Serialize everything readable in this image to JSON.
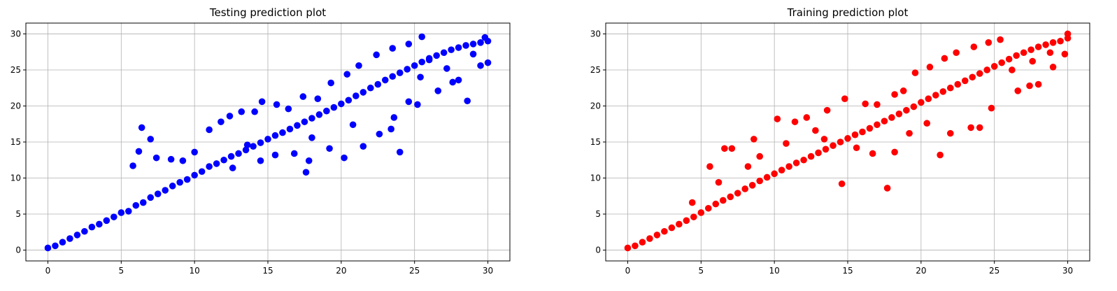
{
  "chart_data": [
    {
      "type": "scatter",
      "title": "Testing prediction plot",
      "xlabel": "",
      "ylabel": "",
      "xlim": [
        -1.5,
        31.5
      ],
      "ylim": [
        -1.5,
        31.5
      ],
      "xticks": [
        0,
        5,
        10,
        15,
        20,
        25,
        30
      ],
      "yticks": [
        0,
        5,
        10,
        15,
        20,
        25,
        30
      ],
      "grid": true,
      "color": "#0000ff",
      "series": [
        {
          "points": [
            [
              0.0,
              0.3
            ],
            [
              0.5,
              0.6
            ],
            [
              1.0,
              1.1
            ],
            [
              1.5,
              1.6
            ],
            [
              2.0,
              2.1
            ],
            [
              2.5,
              2.6
            ],
            [
              3.0,
              3.2
            ],
            [
              3.5,
              3.6
            ],
            [
              4.0,
              4.1
            ],
            [
              4.5,
              4.6
            ],
            [
              5.0,
              5.2
            ],
            [
              5.5,
              5.4
            ],
            [
              6.0,
              6.2
            ],
            [
              6.5,
              6.6
            ],
            [
              7.0,
              7.3
            ],
            [
              7.5,
              7.8
            ],
            [
              8.0,
              8.3
            ],
            [
              8.5,
              8.9
            ],
            [
              9.0,
              9.4
            ],
            [
              9.5,
              9.8
            ],
            [
              10.0,
              10.4
            ],
            [
              10.5,
              10.9
            ],
            [
              11.0,
              11.6
            ],
            [
              11.5,
              12.0
            ],
            [
              12.0,
              12.5
            ],
            [
              12.5,
              13.0
            ],
            [
              13.0,
              13.4
            ],
            [
              13.5,
              13.9
            ],
            [
              14.0,
              14.4
            ],
            [
              14.5,
              14.9
            ],
            [
              15.0,
              15.4
            ],
            [
              15.5,
              15.9
            ],
            [
              16.0,
              16.3
            ],
            [
              16.5,
              16.8
            ],
            [
              17.0,
              17.3
            ],
            [
              17.5,
              17.8
            ],
            [
              18.0,
              18.3
            ],
            [
              18.5,
              18.8
            ],
            [
              19.0,
              19.3
            ],
            [
              19.5,
              19.8
            ],
            [
              20.0,
              20.3
            ],
            [
              20.5,
              20.8
            ],
            [
              21.0,
              21.4
            ],
            [
              21.5,
              21.9
            ],
            [
              22.0,
              22.5
            ],
            [
              22.5,
              23.0
            ],
            [
              23.0,
              23.6
            ],
            [
              23.5,
              24.1
            ],
            [
              24.0,
              24.6
            ],
            [
              24.5,
              25.1
            ],
            [
              25.0,
              25.6
            ],
            [
              25.5,
              26.1
            ],
            [
              26.0,
              26.6
            ],
            [
              26.5,
              27.0
            ],
            [
              27.0,
              27.4
            ],
            [
              27.5,
              27.8
            ],
            [
              28.0,
              28.1
            ],
            [
              28.5,
              28.4
            ],
            [
              29.0,
              28.6
            ],
            [
              29.5,
              28.8
            ],
            [
              30.0,
              29.0
            ],
            [
              6.4,
              17.0
            ],
            [
              7.0,
              15.4
            ],
            [
              6.2,
              13.7
            ],
            [
              5.8,
              11.7
            ],
            [
              7.4,
              12.8
            ],
            [
              8.4,
              12.6
            ],
            [
              9.2,
              12.4
            ],
            [
              10.0,
              13.6
            ],
            [
              11.0,
              16.7
            ],
            [
              11.8,
              17.8
            ],
            [
              12.4,
              18.6
            ],
            [
              13.2,
              19.2
            ],
            [
              14.1,
              19.2
            ],
            [
              14.6,
              20.6
            ],
            [
              15.6,
              20.2
            ],
            [
              16.4,
              19.6
            ],
            [
              17.4,
              21.3
            ],
            [
              18.4,
              21.0
            ],
            [
              19.3,
              23.2
            ],
            [
              20.4,
              24.4
            ],
            [
              21.2,
              25.6
            ],
            [
              22.4,
              27.1
            ],
            [
              23.5,
              28.0
            ],
            [
              24.6,
              28.6
            ],
            [
              25.5,
              29.6
            ],
            [
              17.6,
              10.8
            ],
            [
              17.8,
              12.4
            ],
            [
              16.8,
              13.4
            ],
            [
              19.2,
              14.1
            ],
            [
              20.2,
              12.8
            ],
            [
              21.5,
              14.4
            ],
            [
              22.6,
              16.1
            ],
            [
              23.4,
              16.8
            ],
            [
              24.0,
              13.6
            ],
            [
              23.6,
              18.4
            ],
            [
              24.6,
              20.6
            ],
            [
              25.2,
              20.2
            ],
            [
              26.6,
              22.1
            ],
            [
              27.6,
              23.3
            ],
            [
              28.6,
              20.7
            ],
            [
              28.0,
              23.6
            ],
            [
              29.5,
              25.6
            ],
            [
              13.6,
              14.6
            ],
            [
              14.5,
              12.4
            ],
            [
              12.6,
              11.4
            ],
            [
              15.5,
              13.2
            ],
            [
              18.0,
              15.6
            ],
            [
              20.8,
              17.4
            ],
            [
              26.0,
              26.4
            ],
            [
              27.2,
              25.2
            ],
            [
              25.4,
              24.0
            ],
            [
              29.0,
              27.2
            ],
            [
              29.8,
              29.5
            ],
            [
              30.0,
              26.0
            ]
          ]
        }
      ]
    },
    {
      "type": "scatter",
      "title": "Training prediction plot",
      "xlabel": "",
      "ylabel": "",
      "xlim": [
        -1.5,
        31.5
      ],
      "ylim": [
        -1.5,
        31.5
      ],
      "xticks": [
        0,
        5,
        10,
        15,
        20,
        25,
        30
      ],
      "yticks": [
        0,
        5,
        10,
        15,
        20,
        25,
        30
      ],
      "grid": true,
      "color": "#ff0000",
      "series": [
        {
          "points": [
            [
              0.0,
              0.3
            ],
            [
              0.5,
              0.6
            ],
            [
              1.0,
              1.1
            ],
            [
              1.5,
              1.6
            ],
            [
              2.0,
              2.1
            ],
            [
              2.5,
              2.6
            ],
            [
              3.0,
              3.1
            ],
            [
              3.5,
              3.6
            ],
            [
              4.0,
              4.1
            ],
            [
              4.5,
              4.6
            ],
            [
              5.0,
              5.2
            ],
            [
              5.5,
              5.8
            ],
            [
              6.0,
              6.4
            ],
            [
              6.5,
              6.9
            ],
            [
              7.0,
              7.4
            ],
            [
              7.5,
              7.9
            ],
            [
              8.0,
              8.5
            ],
            [
              8.5,
              9.0
            ],
            [
              9.0,
              9.6
            ],
            [
              9.5,
              10.1
            ],
            [
              10.0,
              10.6
            ],
            [
              10.5,
              11.1
            ],
            [
              11.0,
              11.6
            ],
            [
              11.5,
              12.1
            ],
            [
              12.0,
              12.5
            ],
            [
              12.5,
              13.0
            ],
            [
              13.0,
              13.5
            ],
            [
              13.5,
              14.0
            ],
            [
              14.0,
              14.5
            ],
            [
              14.5,
              15.0
            ],
            [
              15.0,
              15.5
            ],
            [
              15.5,
              16.0
            ],
            [
              16.0,
              16.4
            ],
            [
              16.5,
              16.9
            ],
            [
              17.0,
              17.4
            ],
            [
              17.5,
              17.9
            ],
            [
              18.0,
              18.4
            ],
            [
              18.5,
              18.9
            ],
            [
              19.0,
              19.4
            ],
            [
              19.5,
              19.9
            ],
            [
              20.0,
              20.5
            ],
            [
              20.5,
              21.0
            ],
            [
              21.0,
              21.5
            ],
            [
              21.5,
              22.0
            ],
            [
              22.0,
              22.5
            ],
            [
              22.5,
              23.0
            ],
            [
              23.0,
              23.5
            ],
            [
              23.5,
              24.0
            ],
            [
              24.0,
              24.5
            ],
            [
              24.5,
              25.0
            ],
            [
              25.0,
              25.5
            ],
            [
              25.5,
              26.0
            ],
            [
              26.0,
              26.5
            ],
            [
              26.5,
              27.0
            ],
            [
              27.0,
              27.4
            ],
            [
              27.5,
              27.8
            ],
            [
              28.0,
              28.2
            ],
            [
              28.5,
              28.5
            ],
            [
              29.0,
              28.8
            ],
            [
              29.5,
              29.0
            ],
            [
              30.0,
              29.4
            ],
            [
              6.6,
              14.1
            ],
            [
              7.1,
              14.1
            ],
            [
              5.6,
              11.6
            ],
            [
              8.6,
              15.4
            ],
            [
              10.2,
              18.2
            ],
            [
              11.4,
              17.8
            ],
            [
              12.2,
              18.4
            ],
            [
              13.6,
              19.4
            ],
            [
              14.8,
              21.0
            ],
            [
              16.2,
              20.3
            ],
            [
              17.0,
              20.2
            ],
            [
              18.2,
              21.6
            ],
            [
              18.8,
              22.1
            ],
            [
              19.6,
              24.6
            ],
            [
              20.6,
              25.4
            ],
            [
              21.6,
              26.6
            ],
            [
              22.4,
              27.4
            ],
            [
              23.6,
              28.2
            ],
            [
              24.6,
              28.8
            ],
            [
              25.4,
              29.2
            ],
            [
              17.7,
              8.6
            ],
            [
              14.6,
              9.2
            ],
            [
              16.7,
              13.4
            ],
            [
              18.2,
              13.6
            ],
            [
              21.3,
              13.2
            ],
            [
              22.0,
              16.2
            ],
            [
              23.4,
              17.0
            ],
            [
              24.0,
              17.0
            ],
            [
              24.8,
              19.7
            ],
            [
              26.6,
              22.1
            ],
            [
              27.4,
              22.8
            ],
            [
              28.0,
              23.0
            ],
            [
              29.0,
              25.4
            ],
            [
              29.8,
              27.2
            ],
            [
              13.4,
              15.4
            ],
            [
              15.6,
              14.2
            ],
            [
              19.2,
              16.2
            ],
            [
              20.4,
              17.6
            ],
            [
              26.2,
              25.0
            ],
            [
              27.6,
              26.2
            ],
            [
              28.8,
              27.4
            ],
            [
              30.0,
              30.0
            ],
            [
              9.0,
              13.0
            ],
            [
              10.8,
              14.8
            ],
            [
              12.8,
              16.6
            ],
            [
              6.2,
              9.4
            ],
            [
              8.2,
              11.6
            ],
            [
              4.4,
              6.6
            ]
          ]
        }
      ]
    }
  ]
}
